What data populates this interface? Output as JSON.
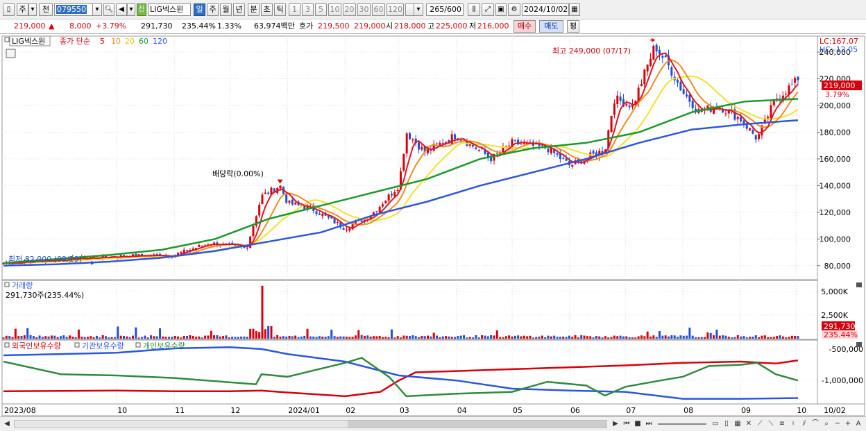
{
  "toolbar": {
    "period_select": "주",
    "prev_label": "전",
    "code_value": "079550",
    "stock_badge": "신",
    "stock_name": "LIG넥스원",
    "period_tabs": [
      "일",
      "주",
      "월",
      "년",
      "분",
      "초",
      "틱"
    ],
    "active_period": "일",
    "minute_buttons": [
      "1",
      "3",
      "5",
      "10",
      "20",
      "30",
      "60",
      "120"
    ],
    "count_value": "265",
    "count_total": "/600",
    "date_value": "2024/10/02"
  },
  "quote": {
    "price": "219,000",
    "change": "8,000",
    "change_pct": "+3.79%",
    "volume": "291,730",
    "volume_ratio": "235.44%",
    "turnover": "1.33%",
    "amount": "63,974백만",
    "ask_label": "호가",
    "ask_sell": "219,500",
    "ask_buy": "219,000",
    "open_label": "시",
    "open": "218,000",
    "high_label": "고",
    "high": "225,000",
    "low_label": "저",
    "low": "216,000",
    "buy_button": "매수",
    "sell_button": "매도",
    "eval_button": "평"
  },
  "legend": {
    "stock": "LIG넥스원",
    "ma_title": "종가 단순",
    "ma_5": "5",
    "ma_10": "10",
    "ma_20": "20",
    "ma_60": "60",
    "ma_120": "120",
    "lc": "LC:167.07",
    "hc": "HC:-12.05",
    "max_note": "최고 249,000 (07/17)",
    "min_note": "최저 82,000 (09/19)",
    "dividend_note": "배당락(0.00%)",
    "last_price_tag": "219,000",
    "last_pct_tag": "3.79%"
  },
  "volume_panel": {
    "title": "거래량",
    "subtitle": "291,730주(235.44%)",
    "last_tag": "291,730",
    "last_pct_tag": "235.44%"
  },
  "holding_panel": {
    "legend_foreign": "외국인보유수량",
    "legend_inst": "기관보유수량",
    "legend_indiv": "개인보유수량"
  },
  "axes": {
    "price_ticks": [
      "240,000",
      "220,000",
      "200,000",
      "180,000",
      "160,000",
      "140,000",
      "120,000",
      "100,000",
      "80,000"
    ],
    "volume_ticks": [
      "5,000K",
      "2,500K"
    ],
    "holding_ticks": [
      "-500,000",
      "-1,000,000"
    ],
    "x_labels": [
      "2023/08",
      "10",
      "11",
      "12",
      "2024/01",
      "02",
      "03",
      "04",
      "05",
      "06",
      "07",
      "08",
      "09",
      "10"
    ],
    "x_right_label": "10/02"
  },
  "colors": {
    "up": "#d8000c",
    "down": "#1f4fd6",
    "ma5": "#e0141e",
    "ma10": "#f08c1c",
    "ma20": "#f2e12a",
    "ma60": "#1a9a2c",
    "ma120": "#2a56e0",
    "foreign": "#d8000c",
    "inst": "#2a56e0",
    "indiv": "#2e8b3c"
  },
  "chart_data": {
    "type": "line",
    "title": "",
    "x_start": "2023/08",
    "x_end": "2024/10/02",
    "ylim": [
      70000,
      252000
    ],
    "price_anchors": [
      {
        "date": "2023/08",
        "close": 82000
      },
      {
        "date": "2023/10",
        "close": 87000
      },
      {
        "date": "2023/11",
        "close": 88000
      },
      {
        "date": "2023/11/20",
        "close": 97000
      },
      {
        "date": "2023/12/10",
        "close": 93000
      },
      {
        "date": "2023/12/18",
        "close": 132000
      },
      {
        "date": "2023/12/28",
        "close": 140000
      },
      {
        "date": "2024/01",
        "close": 127000
      },
      {
        "date": "2024/01/15",
        "close": 122000
      },
      {
        "date": "2024/02",
        "close": 108000
      },
      {
        "date": "2024/02/15",
        "close": 118000
      },
      {
        "date": "2024/03",
        "close": 140000
      },
      {
        "date": "2024/03/05",
        "close": 180000
      },
      {
        "date": "2024/03/15",
        "close": 165000
      },
      {
        "date": "2024/04",
        "close": 178000
      },
      {
        "date": "2024/04/20",
        "close": 160000
      },
      {
        "date": "2024/05",
        "close": 172000
      },
      {
        "date": "2024/05/20",
        "close": 168000
      },
      {
        "date": "2024/06",
        "close": 155000
      },
      {
        "date": "2024/06/20",
        "close": 167000
      },
      {
        "date": "2024/06/25",
        "close": 205000
      },
      {
        "date": "2024/07/05",
        "close": 200000
      },
      {
        "date": "2024/07/17",
        "close": 245000
      },
      {
        "date": "2024/07/25",
        "close": 228000
      },
      {
        "date": "2024/08",
        "close": 210000
      },
      {
        "date": "2024/08/10",
        "close": 195000
      },
      {
        "date": "2024/08/20",
        "close": 200000
      },
      {
        "date": "2024/09",
        "close": 190000
      },
      {
        "date": "2024/09/10",
        "close": 175000
      },
      {
        "date": "2024/09/20",
        "close": 205000
      },
      {
        "date": "2024/10/02",
        "close": 219000
      }
    ],
    "ma_series": [
      {
        "name": "60",
        "values": [
          82000,
          85000,
          88000,
          92000,
          100000,
          115000,
          125000,
          135000,
          145000,
          160000,
          168000,
          172000,
          180000,
          195000,
          203000,
          205000
        ]
      },
      {
        "name": "120",
        "values": [
          80000,
          81000,
          83000,
          86000,
          91000,
          98000,
          105000,
          118000,
          128000,
          140000,
          150000,
          160000,
          172000,
          182000,
          186000,
          189000
        ]
      }
    ],
    "volume_peak": 5600000,
    "volume_last": 291730
  }
}
